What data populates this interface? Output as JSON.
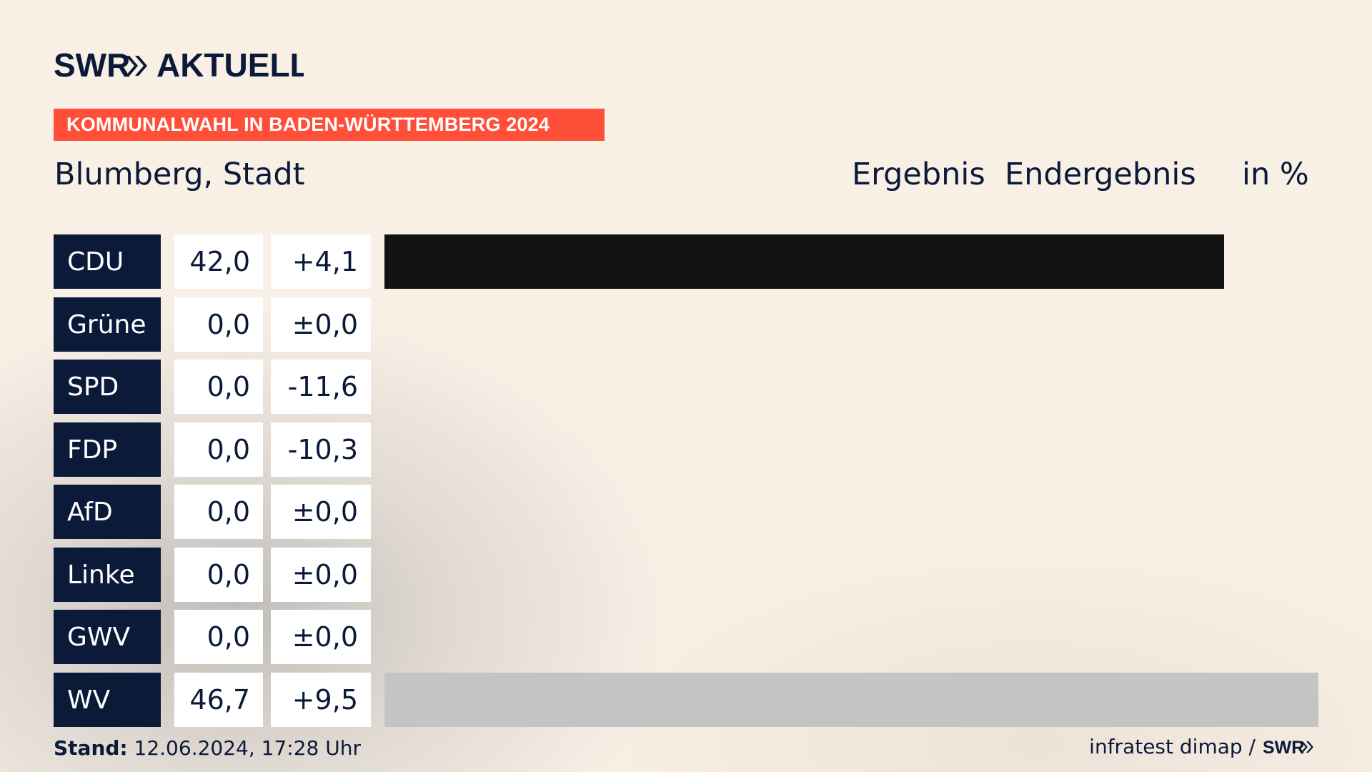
{
  "brand": {
    "logo_text": "SWR» AKTUELL",
    "colors": {
      "navy": "#0b1a39",
      "accent": "#ff4f39",
      "background": "#f8efe5",
      "leading_bar": "#121212",
      "winner_bar": "#c4c4c4",
      "value_box": "#ffffff"
    }
  },
  "banner": {
    "text": "KOMMUNALWAHL IN BADEN-WÜRTTEMBERG 2024"
  },
  "header": {
    "location": "Blumberg, Stadt",
    "result_label": "Ergebnis",
    "result_type": "Endergebnis",
    "unit": "in %"
  },
  "chart_data": {
    "type": "bar",
    "orientation": "horizontal",
    "categories": [
      "CDU",
      "Grüne",
      "SPD",
      "FDP",
      "AfD",
      "Linke",
      "GWV",
      "WV"
    ],
    "values": [
      42.0,
      0.0,
      0.0,
      0.0,
      0.0,
      0.0,
      0.0,
      46.7
    ],
    "value_labels": [
      "42,0",
      "0,0",
      "0,0",
      "0,0",
      "0,0",
      "0,0",
      "0,0",
      "46,7"
    ],
    "change_labels": [
      "+4,1",
      "±0,0",
      "-11,6",
      "-10,3",
      "±0,0",
      "±0,0",
      "±0,0",
      "+9,5"
    ],
    "changes": [
      4.1,
      0.0,
      -11.6,
      -10.3,
      0.0,
      0.0,
      0.0,
      9.5
    ],
    "bar_colors": [
      "#121212",
      "#121212",
      "#121212",
      "#121212",
      "#121212",
      "#121212",
      "#121212",
      "#c4c4c4"
    ],
    "xlim": [
      0,
      46.7
    ],
    "unit": "in %",
    "title": "Blumberg, Stadt"
  },
  "footer": {
    "stand_label": "Stand:",
    "stand_value": "12.06.2024, 17:28 Uhr",
    "source": "infratest dimap /",
    "source_logo": "SWR»"
  }
}
